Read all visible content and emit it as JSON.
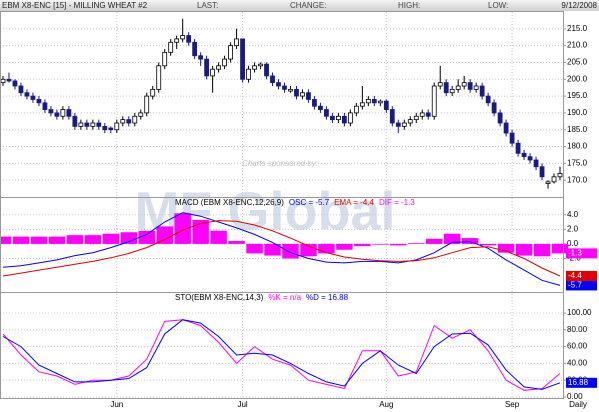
{
  "header": {
    "title": "EBM X8-ENC [15] - MILLING WHEAT #2",
    "last": "LAST:",
    "change": "CHANGE:",
    "high": "HIGH:",
    "low": "LOW:",
    "date": "9/12/2008"
  },
  "sponsor": {
    "text": "Charts sponsored by:",
    "name": "MF Global"
  },
  "chart_data": [
    {
      "type": "candlestick",
      "periodicity": "Daily",
      "up_color": "#ffffff",
      "down_color": "#1a1a80",
      "categories": [
        null,
        null,
        null,
        null,
        null,
        null,
        null,
        null,
        null,
        null,
        null,
        null,
        null,
        null,
        null,
        null,
        null,
        null,
        null,
        "Jun",
        null,
        null,
        null,
        null,
        null,
        null,
        null,
        null,
        null,
        null,
        null,
        null,
        null,
        null,
        null,
        null,
        null,
        null,
        null,
        null,
        "Jul",
        null,
        null,
        null,
        null,
        null,
        null,
        null,
        null,
        null,
        null,
        null,
        null,
        null,
        null,
        null,
        null,
        null,
        null,
        null,
        null,
        null,
        null,
        null,
        "Aug",
        null,
        null,
        null,
        null,
        null,
        null,
        null,
        null,
        null,
        null,
        null,
        null,
        null,
        null,
        null,
        null,
        null,
        null,
        null,
        null,
        "Sep",
        null,
        null,
        null,
        null,
        null,
        null,
        null,
        null
      ],
      "ohlc": [
        [
          199,
          201,
          198,
          200
        ],
        [
          200,
          202,
          199,
          199.5
        ],
        [
          199.5,
          200,
          197,
          198
        ],
        [
          198,
          199,
          195,
          196
        ],
        [
          196,
          197,
          194,
          195
        ],
        [
          195,
          196,
          193,
          194
        ],
        [
          194,
          195,
          192,
          193
        ],
        [
          193,
          194,
          190,
          191
        ],
        [
          191,
          192,
          189,
          190
        ],
        [
          190,
          191,
          188,
          189
        ],
        [
          189,
          192,
          188,
          191
        ],
        [
          191,
          192,
          188,
          189
        ],
        [
          189,
          190,
          185,
          186
        ],
        [
          186,
          188,
          185,
          187
        ],
        [
          187,
          188,
          185,
          186
        ],
        [
          186,
          188,
          185,
          187
        ],
        [
          187,
          188,
          185,
          186
        ],
        [
          186,
          187,
          184,
          185
        ],
        [
          185.5,
          186,
          184,
          185
        ],
        [
          185,
          188,
          184,
          187
        ],
        [
          187,
          189,
          186,
          188
        ],
        [
          188,
          189,
          186,
          187
        ],
        [
          187,
          190,
          186,
          189
        ],
        [
          189,
          191,
          188,
          190
        ],
        [
          190,
          196,
          189,
          195
        ],
        [
          195,
          198,
          194,
          197
        ],
        [
          197,
          205,
          196,
          204
        ],
        [
          204,
          209,
          203,
          208
        ],
        [
          208,
          212,
          207,
          211
        ],
        [
          211,
          213,
          209,
          212
        ],
        [
          212,
          218,
          211,
          213
        ],
        [
          213,
          214,
          210,
          211
        ],
        [
          211,
          212,
          206,
          207
        ],
        [
          207,
          208,
          204,
          206
        ],
        [
          206,
          207,
          200,
          201
        ],
        [
          201,
          204,
          196,
          203
        ],
        [
          203,
          205,
          202,
          204
        ],
        [
          204,
          207,
          203,
          206
        ],
        [
          206,
          211,
          205,
          210
        ],
        [
          210,
          215,
          209,
          212
        ],
        [
          212,
          212,
          199,
          200
        ],
        [
          200,
          204,
          199,
          203
        ],
        [
          203,
          205,
          202,
          204
        ],
        [
          204,
          205,
          203,
          204.5
        ],
        [
          204.5,
          205,
          200,
          201
        ],
        [
          201,
          202,
          198,
          199
        ],
        [
          199,
          200,
          197,
          198
        ],
        [
          198,
          199,
          196,
          197
        ],
        [
          196.5,
          198,
          196,
          197
        ],
        [
          197,
          198,
          194,
          195
        ],
        [
          195,
          197,
          194,
          196
        ],
        [
          196,
          197,
          193,
          194
        ],
        [
          194,
          195,
          191,
          192
        ],
        [
          192,
          193,
          190,
          191
        ],
        [
          191,
          192,
          188,
          189
        ],
        [
          189,
          190,
          187,
          188
        ],
        [
          188,
          190,
          187,
          189
        ],
        [
          189,
          190,
          186,
          187
        ],
        [
          187,
          191,
          186,
          190
        ],
        [
          190,
          193,
          189,
          192
        ],
        [
          192,
          198,
          191,
          193
        ],
        [
          193,
          195,
          192,
          194
        ],
        [
          194,
          195,
          192,
          193
        ],
        [
          193,
          194,
          192,
          193.5
        ],
        [
          193.5,
          194,
          190,
          191
        ],
        [
          191,
          192,
          186,
          187
        ],
        [
          187,
          188,
          184,
          186
        ],
        [
          186,
          188,
          185,
          187
        ],
        [
          187,
          189,
          186,
          188
        ],
        [
          188,
          190,
          187,
          189
        ],
        [
          189,
          191,
          188,
          190
        ],
        [
          190,
          191,
          188,
          189
        ],
        [
          189,
          199,
          188,
          198
        ],
        [
          198,
          204,
          197,
          199
        ],
        [
          199,
          200,
          195,
          196
        ],
        [
          196,
          198,
          195,
          197
        ],
        [
          197,
          200,
          196,
          198
        ],
        [
          198,
          201,
          197,
          199
        ],
        [
          199,
          200,
          196,
          197
        ],
        [
          197,
          199,
          196,
          198
        ],
        [
          198,
          199,
          194,
          195
        ],
        [
          195,
          196,
          192,
          193
        ],
        [
          193,
          194,
          189,
          190
        ],
        [
          190,
          191,
          186,
          187
        ],
        [
          187,
          188,
          183,
          184
        ],
        [
          184,
          185,
          180,
          181
        ],
        [
          181,
          182,
          177,
          178
        ],
        [
          178,
          179,
          176,
          177
        ],
        [
          177,
          178,
          175,
          176
        ],
        [
          176,
          177,
          173,
          174
        ],
        [
          174,
          175,
          170,
          171
        ],
        [
          169,
          170,
          167.5,
          169.5
        ],
        [
          169.5,
          172,
          169,
          171
        ],
        [
          171,
          174,
          170,
          172
        ]
      ],
      "ylim": [
        165,
        220
      ],
      "yticks": [
        {
          "value": 170,
          "label": "170.0"
        },
        {
          "value": 175,
          "label": "175.0"
        },
        {
          "value": 180,
          "label": "180.0"
        },
        {
          "value": 185,
          "label": "185.0"
        },
        {
          "value": 190,
          "label": "190.0"
        },
        {
          "value": 195,
          "label": "195.0"
        },
        {
          "value": 200,
          "label": "200.0"
        },
        {
          "value": 205,
          "label": "205.0"
        },
        {
          "value": 210,
          "label": "210.0"
        },
        {
          "value": 215,
          "label": "215.0"
        }
      ],
      "grid": true
    },
    {
      "type": "indicator",
      "title": "MACD (EBM X8-ENC,12,26,9)",
      "x": [
        0,
        3,
        6,
        9,
        12,
        15,
        18,
        21,
        24,
        27,
        30,
        33,
        36,
        39,
        42,
        45,
        48,
        51,
        54,
        57,
        60,
        63,
        66,
        69,
        72,
        75,
        78,
        81,
        84,
        87,
        90,
        93
      ],
      "xlim": [
        -0.5,
        93.5
      ],
      "ylim": [
        -6.6,
        6.3
      ],
      "yticks": [
        {
          "value": -2,
          "label": "-2.0"
        },
        {
          "value": 0,
          "label": "0.0"
        },
        {
          "value": 2,
          "label": "2.0"
        },
        {
          "value": 4,
          "label": "4.0"
        }
      ],
      "grid": true,
      "series": [
        {
          "name": "OSC = -5.7",
          "color": "#0000ff",
          "style": "line",
          "end_marker": true,
          "values": [
            -3.2,
            -3.0,
            -2.6,
            -2.2,
            -1.6,
            -1.2,
            -0.5,
            0.3,
            1.3,
            3.0,
            4.3,
            3.8,
            3.0,
            2.2,
            1.3,
            0.2,
            -1.2,
            -2.0,
            -2.5,
            -2.6,
            -2.4,
            -2.4,
            -2.6,
            -2.2,
            -1.2,
            0.2,
            0.3,
            -0.6,
            -2.2,
            -3.6,
            -5.0,
            -5.7
          ]
        },
        {
          "name": "EMA = -4.4",
          "color": "#e00000",
          "style": "line",
          "end_marker": true,
          "values": [
            -4.4,
            -4.0,
            -3.6,
            -3.2,
            -2.8,
            -2.4,
            -1.9,
            -1.3,
            -0.5,
            0.6,
            1.9,
            2.8,
            3.2,
            3.1,
            2.6,
            1.8,
            0.8,
            -0.3,
            -1.2,
            -1.8,
            -2.1,
            -2.3,
            -2.4,
            -2.3,
            -1.9,
            -1.2,
            -0.5,
            -0.4,
            -1.0,
            -2.0,
            -3.3,
            -4.4
          ]
        },
        {
          "name": "DIF = -1.3",
          "color": "#ff00ff",
          "style": "bar",
          "end_marker": true,
          "values": [
            1.0,
            1.0,
            1.0,
            1.0,
            1.2,
            1.2,
            1.4,
            1.6,
            1.8,
            2.4,
            4.2,
            3.3,
            1.8,
            0.4,
            -1.3,
            -1.6,
            -2.0,
            -1.7,
            -1.3,
            -0.8,
            -0.3,
            -0.1,
            -0.2,
            0.1,
            0.7,
            1.4,
            0.8,
            -0.2,
            -1.2,
            -1.6,
            -1.7,
            -1.3
          ]
        }
      ]
    },
    {
      "type": "indicator",
      "title": "STO(EBM X8-ENC,14,3)",
      "x": [
        0,
        3,
        6,
        9,
        12,
        15,
        18,
        21,
        24,
        27,
        30,
        33,
        36,
        39,
        42,
        45,
        48,
        51,
        54,
        57,
        60,
        63,
        66,
        69,
        72,
        75,
        78,
        81,
        84,
        87,
        90,
        93
      ],
      "xlim": [
        -0.5,
        93.5
      ],
      "ylim": [
        -1.2,
        123.8
      ],
      "yticks": [
        {
          "value": 0,
          "label": "0.00"
        },
        {
          "value": 20,
          "label": "20.00"
        },
        {
          "value": 40,
          "label": "40.00"
        },
        {
          "value": 60,
          "label": "60.00"
        },
        {
          "value": 80,
          "label": "80.00"
        },
        {
          "value": 100,
          "label": "100.00"
        }
      ],
      "grid": true,
      "series": [
        {
          "name": "%K = n/a",
          "color": "#ff00ff",
          "style": "line",
          "end_marker": false,
          "values": [
            75,
            50,
            30,
            25,
            15,
            20,
            20,
            25,
            45,
            90,
            92,
            85,
            65,
            40,
            60,
            45,
            38,
            20,
            15,
            10,
            55,
            55,
            25,
            30,
            85,
            70,
            80,
            55,
            20,
            8,
            10,
            28
          ]
        },
        {
          "name": "%D = 16.88",
          "color": "#0000ff",
          "style": "line",
          "end_marker": true,
          "values": [
            72,
            60,
            38,
            28,
            18,
            18,
            20,
            22,
            35,
            75,
            92,
            88,
            72,
            50,
            52,
            50,
            40,
            28,
            18,
            13,
            40,
            55,
            38,
            28,
            60,
            75,
            76,
            62,
            32,
            12,
            9,
            16.88
          ]
        }
      ]
    }
  ]
}
